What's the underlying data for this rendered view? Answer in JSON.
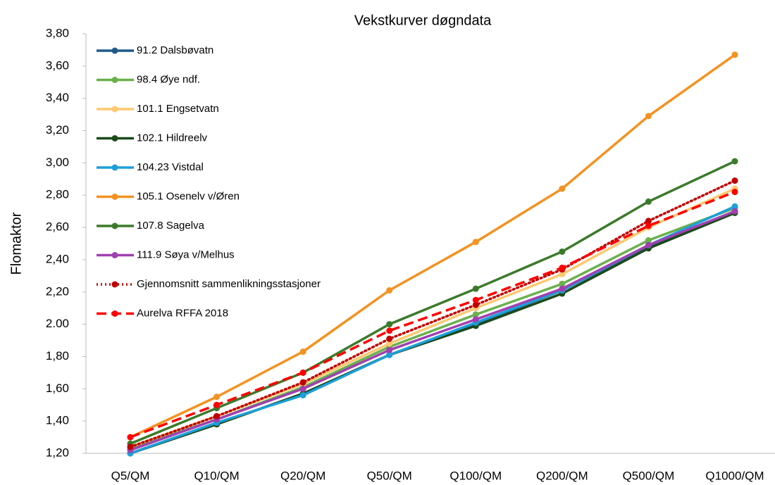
{
  "chart_data": {
    "type": "line",
    "title": "Vekstkurver døgndata",
    "y_label": "Flomaktor",
    "categories": [
      "Q5/QM",
      "Q10/QM",
      "Q20/QM",
      "Q50/QM",
      "Q100/QM",
      "Q200/QM",
      "Q500/QM",
      "Q1000/QM"
    ],
    "ylim": [
      1.2,
      3.8
    ],
    "yticks": [
      {
        "value": 1.2,
        "label": "1,20"
      },
      {
        "value": 1.4,
        "label": "1,40"
      },
      {
        "value": 1.6,
        "label": "1,60"
      },
      {
        "value": 1.8,
        "label": "1,80"
      },
      {
        "value": 2,
        "label": "2.00"
      },
      {
        "value": 2.2,
        "label": "2,20"
      },
      {
        "value": 2.4,
        "label": "2,40"
      },
      {
        "value": 2.6,
        "label": "2,60"
      },
      {
        "value": 2.8,
        "label": "2,80"
      },
      {
        "value": 3,
        "label": "3,00"
      },
      {
        "value": 3.2,
        "label": "3,20"
      },
      {
        "value": 3.4,
        "label": "3,40"
      },
      {
        "value": 3.6,
        "label": "3,60"
      },
      {
        "value": 3.8,
        "label": "3,80"
      }
    ],
    "grid": false,
    "legend": "top-left",
    "series": [
      {
        "name": "91.2 Dalsbøvatn",
        "color": "#1f5a8a",
        "dash": "solid",
        "values": [
          1.2,
          1.38,
          1.57,
          1.81,
          2.0,
          2.21,
          2.48,
          2.7
        ]
      },
      {
        "name": "98.4 Øye ndf.",
        "color": "#6ab04c",
        "dash": "solid",
        "values": [
          1.23,
          1.41,
          1.61,
          1.86,
          2.06,
          2.25,
          2.52,
          2.72
        ]
      },
      {
        "name": "101.1 Engsetvatn",
        "color": "#ffc870",
        "dash": "solid",
        "values": [
          1.24,
          1.43,
          1.63,
          1.88,
          2.1,
          2.31,
          2.6,
          2.84
        ]
      },
      {
        "name": "102.1 Hildreelv",
        "color": "#1a4a1a",
        "dash": "solid",
        "values": [
          1.2,
          1.38,
          1.57,
          1.81,
          1.99,
          2.19,
          2.47,
          2.69
        ]
      },
      {
        "name": "104.23 Vistdal",
        "color": "#1ca0d8",
        "dash": "solid",
        "values": [
          1.2,
          1.39,
          1.56,
          1.81,
          2.01,
          2.21,
          2.49,
          2.73
        ]
      },
      {
        "name": "105.1 Osenelv v/Øren",
        "color": "#f39221",
        "dash": "solid",
        "values": [
          1.3,
          1.55,
          1.83,
          2.21,
          2.51,
          2.84,
          3.29,
          3.67
        ]
      },
      {
        "name": "107.8 Sagelva",
        "color": "#3b7a2a",
        "dash": "solid",
        "values": [
          1.26,
          1.48,
          1.7,
          2.0,
          2.22,
          2.45,
          2.76,
          3.01
        ]
      },
      {
        "name": "111.9 Søya v/Melhus",
        "color": "#a040b0",
        "dash": "solid",
        "values": [
          1.22,
          1.41,
          1.6,
          1.84,
          2.03,
          2.22,
          2.49,
          2.7
        ]
      },
      {
        "name": "Gjennomsnitt sammenlikningsstasjoner",
        "color": "#c00000",
        "dash": "dotted",
        "values": [
          1.24,
          1.43,
          1.64,
          1.91,
          2.12,
          2.34,
          2.64,
          2.89
        ]
      },
      {
        "name": "Aurelva RFFA 2018",
        "color": "#ff0000",
        "dash": "dashed",
        "values": [
          1.3,
          1.5,
          1.7,
          1.96,
          2.15,
          2.35,
          2.61,
          2.82
        ]
      }
    ]
  }
}
